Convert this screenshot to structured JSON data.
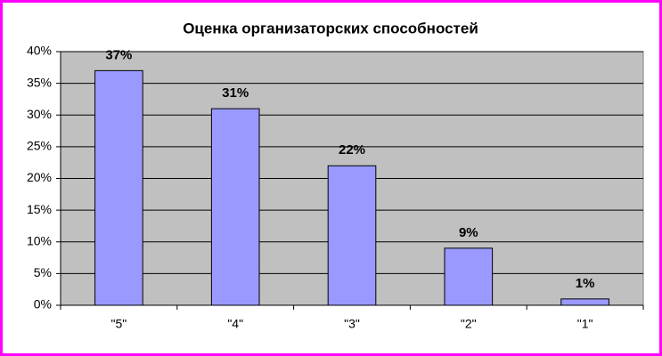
{
  "chart_data": {
    "type": "bar",
    "title": "Оценка организаторских способностей",
    "categories": [
      "\"5\"",
      "\"4\"",
      "\"3\"",
      "\"2\"",
      "\"1\""
    ],
    "values": [
      37,
      31,
      22,
      9,
      1
    ],
    "value_labels": [
      "37%",
      "31%",
      "22%",
      "9%",
      "1%"
    ],
    "color": "#9999ff",
    "ylim": [
      0,
      40
    ],
    "yticks": [
      {
        "value": 0,
        "label": "0%"
      },
      {
        "value": 5,
        "label": "5%"
      },
      {
        "value": 10,
        "label": "10%"
      },
      {
        "value": 15,
        "label": "15%"
      },
      {
        "value": 20,
        "label": "20%"
      },
      {
        "value": 25,
        "label": "25%"
      },
      {
        "value": 30,
        "label": "30%"
      },
      {
        "value": 35,
        "label": "35%"
      },
      {
        "value": 40,
        "label": "40%"
      }
    ],
    "grid": true
  }
}
